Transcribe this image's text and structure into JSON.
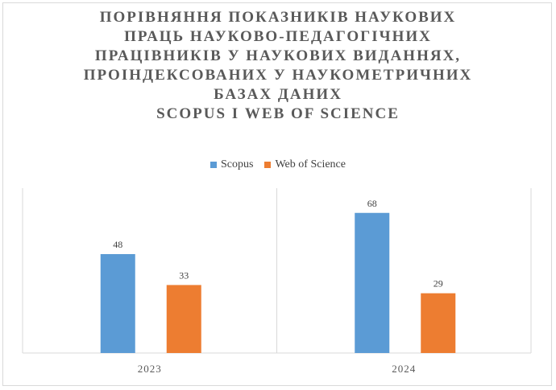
{
  "chart_data": {
    "type": "bar",
    "title_lines": [
      "ПОРІВНЯННЯ ПОКАЗНИКІВ НАУКОВИХ",
      "ПРАЦЬ НАУКОВО-ПЕДАГОГІЧНИХ",
      "ПРАЦІВНИКІВ У НАУКОВИХ ВИДАННЯХ,",
      "ПРОІНДЕКСОВАНИХ У НАУКОМЕТРИЧНИХ",
      "БАЗАХ ДАНИХ",
      "SCOPUS І WEB OF SCIENCE"
    ],
    "categories": [
      "2023",
      "2024"
    ],
    "series": [
      {
        "name": "Scopus",
        "values": [
          48,
          68
        ],
        "color": "#5b9bd5"
      },
      {
        "name": "Web of Science",
        "values": [
          33,
          29
        ],
        "color": "#ed7d31"
      }
    ],
    "ylim": [
      0,
      80
    ],
    "grid": false,
    "legend_position": "top",
    "data_labels": true
  }
}
